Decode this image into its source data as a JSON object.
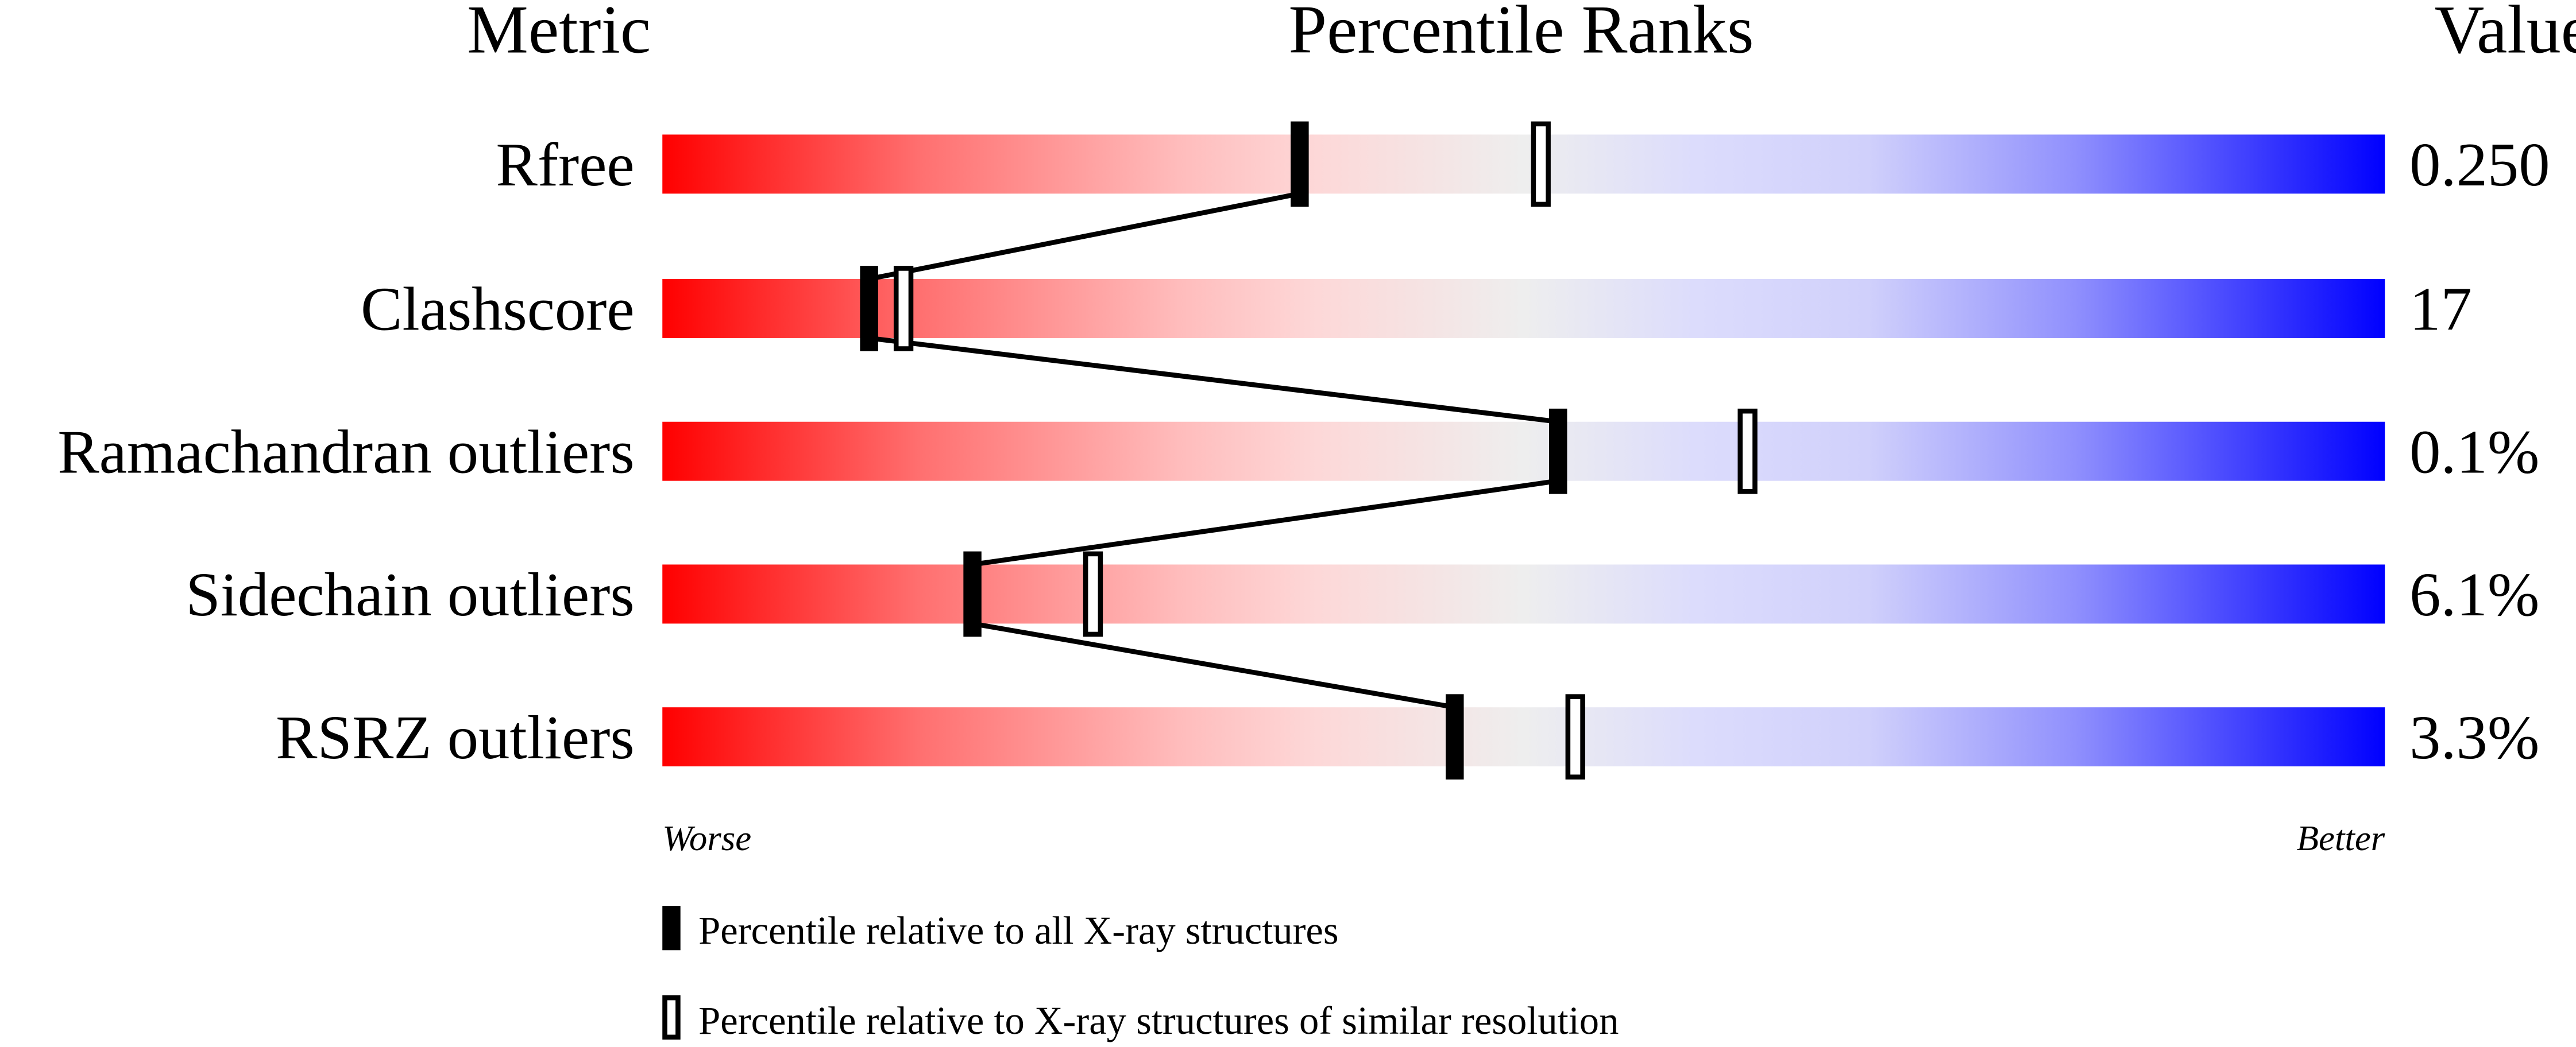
{
  "chart_data": {
    "type": "table",
    "headers": {
      "metric": "Metric",
      "ranks": "Percentile Ranks",
      "value": "Value"
    },
    "axis": {
      "worse": "Worse",
      "better": "Better",
      "range": [
        0,
        100
      ]
    },
    "rows": [
      {
        "metric": "Rfree",
        "value": "0.250",
        "percentile_all": 37,
        "percentile_similar": 51
      },
      {
        "metric": "Clashscore",
        "value": "17",
        "percentile_all": 12,
        "percentile_similar": 14
      },
      {
        "metric": "Ramachandran outliers",
        "value": "0.1%",
        "percentile_all": 52,
        "percentile_similar": 63
      },
      {
        "metric": "Sidechain outliers",
        "value": "6.1%",
        "percentile_all": 18,
        "percentile_similar": 25
      },
      {
        "metric": "RSRZ outliers",
        "value": "3.3%",
        "percentile_all": 46,
        "percentile_similar": 53
      }
    ],
    "legend": {
      "all": "Percentile relative to all X-ray structures",
      "similar": "Percentile relative to X-ray structures of similar resolution"
    },
    "colors": {
      "worse": "#ff0000",
      "middle": "#eeeeee",
      "better": "#0000ff",
      "marker": "#000000"
    }
  }
}
